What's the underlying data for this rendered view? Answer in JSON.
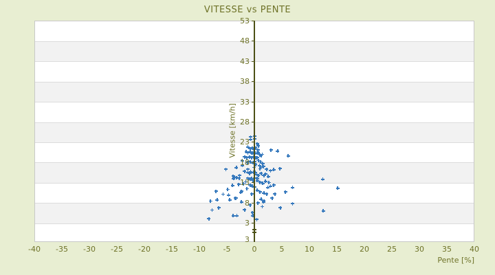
{
  "chart_data": {
    "type": "scatter",
    "title": "VITESSE vs PENTE",
    "xlabel": "Pente [%]",
    "ylabel": "Vitesse [km/h]",
    "xlim": [
      -40,
      40
    ],
    "ylim": [
      -1.75,
      53
    ],
    "x_ticks": [
      -40,
      -35,
      -30,
      -25,
      -20,
      -15,
      -10,
      -5,
      0,
      5,
      10,
      15,
      20,
      25,
      30,
      35,
      40
    ],
    "y_ticks": [
      53,
      48,
      43,
      38,
      33,
      28,
      23,
      18,
      13,
      8,
      3
    ],
    "y_axis_min_label": "3",
    "grid": "horizontal-bands-alternating",
    "legend": "none",
    "marker": "plus",
    "colors": {
      "background": "#e8eed2",
      "band_light": "#ffffff",
      "band_dark": "#f2f2f2",
      "gridline": "#dcdcdc",
      "plot_border": "#c8c8c8",
      "text": "#6e7228",
      "axis_line": "#4c5016",
      "marker": "#3679bd"
    },
    "series": [
      {
        "name": "vitesse-vs-pente",
        "points": [
          [
            -0.8,
            24.4
          ],
          [
            -0.1,
            24.6
          ],
          [
            -0.1,
            23.9
          ],
          [
            -0.8,
            23.8
          ],
          [
            0.4,
            22.7
          ],
          [
            0.6,
            22.2
          ],
          [
            -1.3,
            21.9
          ],
          [
            -0.9,
            21.5
          ],
          [
            -0.5,
            21.7
          ],
          [
            -0.3,
            21.4
          ],
          [
            0.1,
            21.7
          ],
          [
            0.5,
            21.2
          ],
          [
            2.9,
            21.2
          ],
          [
            4.1,
            20.9
          ],
          [
            6.0,
            19.7
          ],
          [
            -1.6,
            20.7
          ],
          [
            -1.3,
            20.5
          ],
          [
            -0.9,
            20.7
          ],
          [
            -0.6,
            20.4
          ],
          [
            -0.4,
            20.5
          ],
          [
            0.0,
            20.4
          ],
          [
            0.4,
            20.4
          ],
          [
            0.6,
            20.5
          ],
          [
            1.1,
            19.8
          ],
          [
            1.3,
            20.1
          ],
          [
            -1.9,
            19.5
          ],
          [
            -1.5,
            19.3
          ],
          [
            -1.0,
            19.5
          ],
          [
            -0.6,
            19.3
          ],
          [
            -0.3,
            19.5
          ],
          [
            0.1,
            19.2
          ],
          [
            0.4,
            19.3
          ],
          [
            0.9,
            19.9
          ],
          [
            -2.3,
            18.5
          ],
          [
            -1.4,
            18.1
          ],
          [
            -0.9,
            18.3
          ],
          [
            -0.4,
            18.0
          ],
          [
            -0.1,
            18.3
          ],
          [
            0.6,
            18.6
          ],
          [
            1.0,
            18.2
          ],
          [
            0.8,
            17.3
          ],
          [
            1.0,
            17.0
          ],
          [
            1.5,
            17.1
          ],
          [
            1.4,
            17.8
          ],
          [
            0.1,
            17.6
          ],
          [
            -0.2,
            16.9
          ],
          [
            2.1,
            16.4
          ],
          [
            2.8,
            16.1
          ],
          [
            3.4,
            16.3
          ],
          [
            4.5,
            16.6
          ],
          [
            0.9,
            16.5
          ],
          [
            -5.3,
            16.4
          ],
          [
            -3.4,
            16.8
          ],
          [
            -2.3,
            17.3
          ],
          [
            -1.3,
            16.4
          ],
          [
            -1.9,
            15.9
          ],
          [
            -1.3,
            15.6
          ],
          [
            -0.8,
            15.8
          ],
          [
            -0.3,
            15.6
          ],
          [
            0.3,
            15.1
          ],
          [
            0.6,
            14.9
          ],
          [
            -1.0,
            15.4
          ],
          [
            0.0,
            15.6
          ],
          [
            1.1,
            15.4
          ],
          [
            1.6,
            14.9
          ],
          [
            1.9,
            15.2
          ],
          [
            -2.8,
            14.9
          ],
          [
            -3.4,
            14.4
          ],
          [
            -3.9,
            14.1
          ],
          [
            -4.0,
            14.7
          ],
          [
            -2.9,
            14.2
          ],
          [
            -1.3,
            14.2
          ],
          [
            -0.6,
            14.1
          ],
          [
            -0.1,
            14.2
          ],
          [
            0.4,
            14.1
          ],
          [
            2.4,
            14.6
          ],
          [
            -0.9,
            13.9
          ],
          [
            -0.4,
            13.7
          ],
          [
            0.4,
            13.6
          ],
          [
            0.9,
            13.2
          ],
          [
            1.4,
            12.9
          ],
          [
            -1.7,
            13.3
          ],
          [
            1.9,
            13.4
          ],
          [
            12.3,
            13.9
          ],
          [
            -4.1,
            12.4
          ],
          [
            -3.0,
            12.7
          ],
          [
            -0.9,
            12.5
          ],
          [
            -0.5,
            12.2
          ],
          [
            -0.1,
            12.0
          ],
          [
            2.3,
            11.9
          ],
          [
            2.8,
            12.2
          ],
          [
            -2.1,
            12.8
          ],
          [
            2.5,
            13.1
          ],
          [
            3.4,
            12.5
          ],
          [
            6.8,
            11.9
          ],
          [
            15.0,
            11.7
          ],
          [
            -5.0,
            11.4
          ],
          [
            -7.1,
            11.0
          ],
          [
            -5.8,
            10.2
          ],
          [
            -4.8,
            10.0
          ],
          [
            -2.5,
            11.0
          ],
          [
            -1.5,
            11.6
          ],
          [
            0.4,
            11.2
          ],
          [
            0.9,
            10.8
          ],
          [
            1.6,
            10.5
          ],
          [
            2.1,
            10.3
          ],
          [
            -0.6,
            10.3
          ],
          [
            5.5,
            10.8
          ],
          [
            -2.6,
            10.7
          ],
          [
            -8.1,
            8.5
          ],
          [
            -6.9,
            8.8
          ],
          [
            -3.6,
            9.3
          ],
          [
            -4.6,
            8.8
          ],
          [
            -3.5,
            9.3
          ],
          [
            1.1,
            9.0
          ],
          [
            1.6,
            8.6
          ],
          [
            3.1,
            9.3
          ],
          [
            3.6,
            10.3
          ],
          [
            -2.5,
            8.3
          ],
          [
            1.5,
            8.3
          ],
          [
            0.5,
            8.1
          ],
          [
            -7.8,
            6.3
          ],
          [
            -6.6,
            6.9
          ],
          [
            4.6,
            6.9
          ],
          [
            6.8,
            7.9
          ],
          [
            12.4,
            6.1
          ],
          [
            -0.9,
            7.6
          ],
          [
            1.3,
            7.2
          ],
          [
            -8.4,
            4.2
          ],
          [
            -4.0,
            4.9
          ],
          [
            -3.3,
            4.9
          ],
          [
            -0.5,
            5.7
          ],
          [
            -0.4,
            4.9
          ],
          [
            0.3,
            4.0
          ],
          [
            -1.9,
            6.4
          ]
        ]
      }
    ]
  }
}
